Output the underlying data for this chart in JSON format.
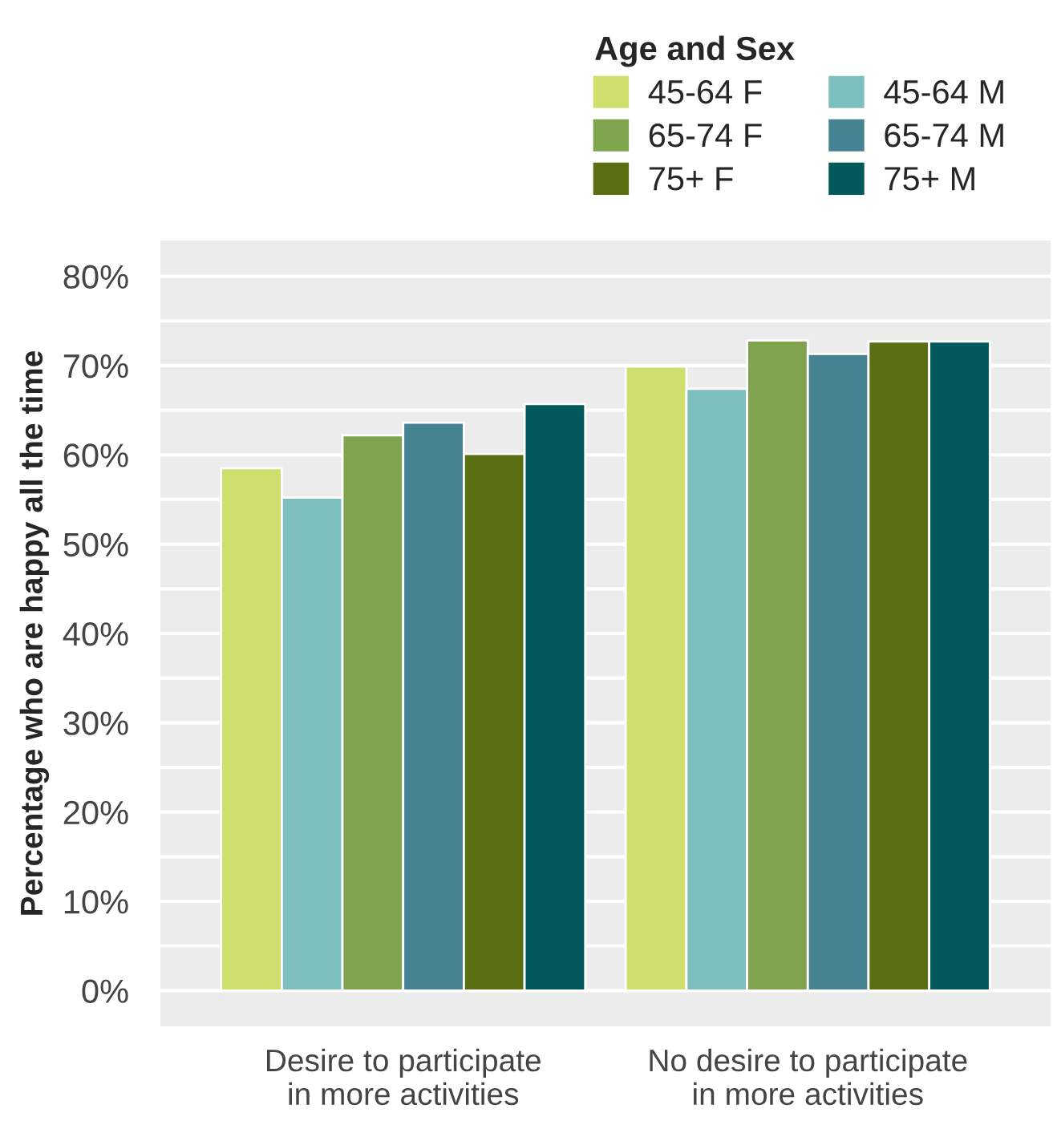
{
  "chart_data": {
    "type": "bar",
    "categories": [
      "Desire to participate\nin more activities",
      "No desire to participate\nin more activities"
    ],
    "ylabel": "Percentage who are happy all the time",
    "legend_title": "Age and Sex",
    "series": [
      {
        "name": "45-64 F",
        "color": "#cfdf6e",
        "values": [
          58.5,
          69.9
        ]
      },
      {
        "name": "45-64 M",
        "color": "#7dbfbe",
        "values": [
          55.2,
          67.4
        ]
      },
      {
        "name": "65-74 F",
        "color": "#7fa44d",
        "values": [
          62.2,
          72.8
        ]
      },
      {
        "name": "65-74 M",
        "color": "#458392",
        "values": [
          63.6,
          71.3
        ]
      },
      {
        "name": "75+ F",
        "color": "#5a6e12",
        "values": [
          60.1,
          72.7
        ]
      },
      {
        "name": "75+ M",
        "color": "#02595b",
        "values": [
          65.7,
          72.7
        ]
      }
    ],
    "ylim": [
      -4,
      84
    ],
    "yticks": [
      {
        "value": 0,
        "label": "0%"
      },
      {
        "value": 5,
        "label": null
      },
      {
        "value": 10,
        "label": "10%"
      },
      {
        "value": 15,
        "label": null
      },
      {
        "value": 20,
        "label": "20%"
      },
      {
        "value": 25,
        "label": null
      },
      {
        "value": 30,
        "label": "30%"
      },
      {
        "value": 35,
        "label": null
      },
      {
        "value": 40,
        "label": "40%"
      },
      {
        "value": 45,
        "label": null
      },
      {
        "value": 50,
        "label": "50%"
      },
      {
        "value": 55,
        "label": null
      },
      {
        "value": 60,
        "label": "60%"
      },
      {
        "value": 65,
        "label": null
      },
      {
        "value": 70,
        "label": "70%"
      },
      {
        "value": 75,
        "label": null
      },
      {
        "value": 80,
        "label": "80%"
      }
    ],
    "grid": "y",
    "legend": "top right"
  }
}
